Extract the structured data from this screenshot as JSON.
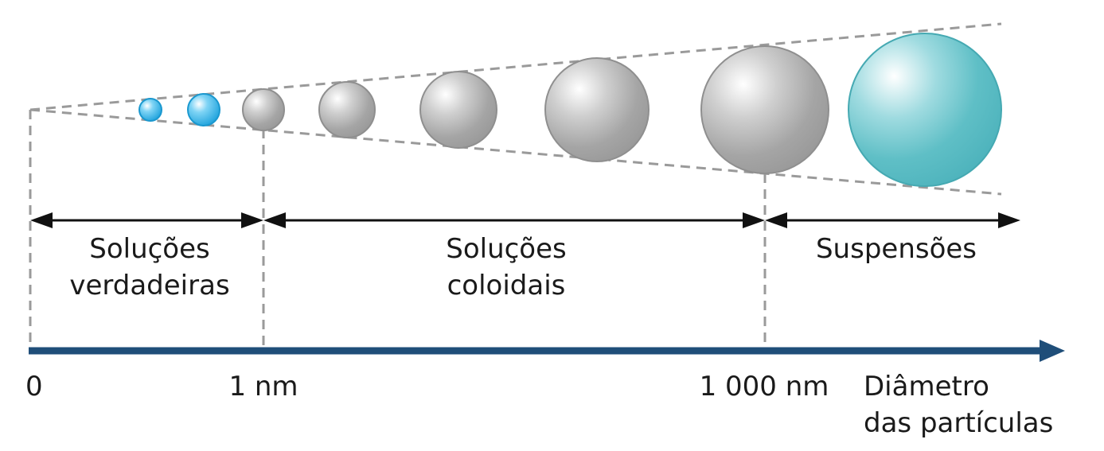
{
  "labels": {
    "true_solutions_line1": "Soluções",
    "true_solutions_line2": "verdadeiras",
    "colloidal_line1": "Soluções",
    "colloidal_line2": "coloidais",
    "suspensions": "Suspensões",
    "tick_zero": "0",
    "tick_1nm": "1 nm",
    "tick_1000nm": "1 000 nm",
    "axis_line1": "Diâmetro",
    "axis_line2": "das partículas"
  },
  "particles": [
    {
      "category": "true-solution",
      "color": "#29abe2"
    },
    {
      "category": "true-solution",
      "color": "#29abe2"
    },
    {
      "category": "colloid",
      "color": "#a6a6a6"
    },
    {
      "category": "colloid",
      "color": "#a6a6a6"
    },
    {
      "category": "colloid",
      "color": "#a6a6a6"
    },
    {
      "category": "colloid",
      "color": "#a6a6a6"
    },
    {
      "category": "colloid",
      "color": "#a6a6a6"
    },
    {
      "category": "suspension",
      "color": "#5dbdc5"
    }
  ],
  "colors": {
    "axis": "#1f4e79",
    "dashed": "#9a9a9a",
    "arrow": "#111111"
  }
}
